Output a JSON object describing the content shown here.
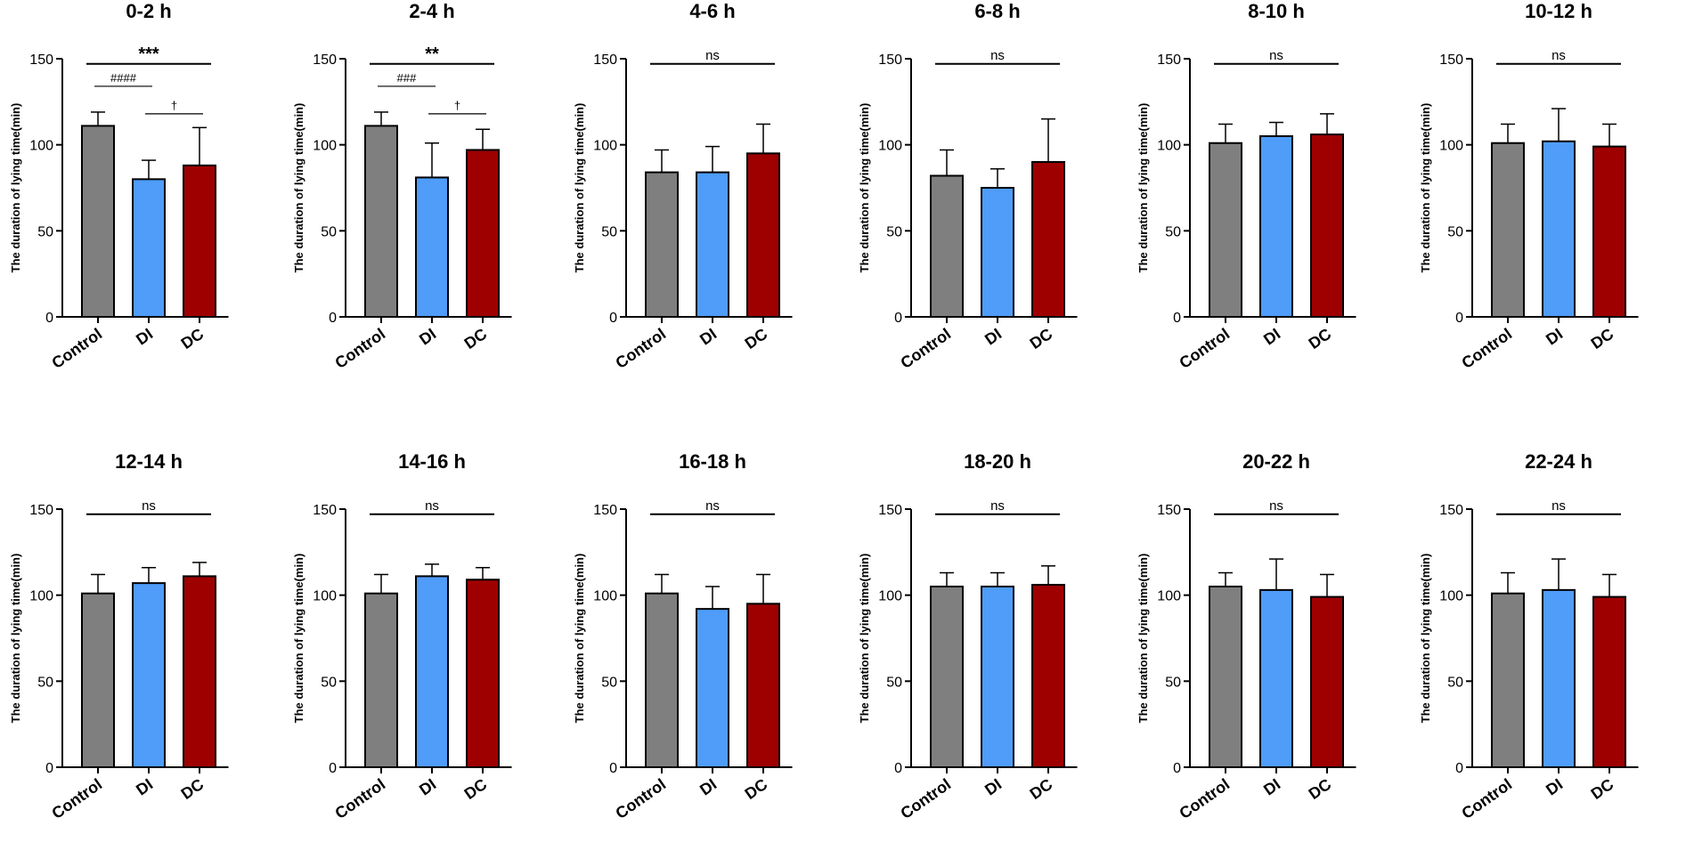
{
  "figure": {
    "ylabel": "The duration of lying time(min)",
    "categories": [
      "Control",
      "DI",
      "DC"
    ],
    "yticks": [
      "0",
      "50",
      "100",
      "150"
    ]
  },
  "colors": {
    "Control": "#7f7f7f",
    "DI": "#4f9cf9",
    "DC": "#9e0000",
    "axis": "#000000"
  },
  "chart_data": [
    {
      "type": "bar",
      "title": "0-2 h",
      "categories": [
        "Control",
        "DI",
        "DC"
      ],
      "values": [
        111,
        80,
        88
      ],
      "errors": [
        8,
        11,
        22
      ],
      "ylabel": "The duration of lying time(min)",
      "ylim": [
        0,
        150
      ],
      "annotations": [
        {
          "text": "***",
          "from": "Control",
          "to": "DC",
          "level": 1
        },
        {
          "text": "####",
          "from": "Control",
          "to": "DI",
          "level": 2
        },
        {
          "text": "†",
          "from": "DI",
          "to": "DC",
          "level": 3
        }
      ]
    },
    {
      "type": "bar",
      "title": "2-4 h",
      "categories": [
        "Control",
        "DI",
        "DC"
      ],
      "values": [
        111,
        81,
        97
      ],
      "errors": [
        8,
        20,
        12
      ],
      "ylabel": "The duration of lying time(min)",
      "ylim": [
        0,
        150
      ],
      "annotations": [
        {
          "text": "**",
          "from": "Control",
          "to": "DC",
          "level": 1
        },
        {
          "text": "###",
          "from": "Control",
          "to": "DI",
          "level": 2
        },
        {
          "text": "†",
          "from": "DI",
          "to": "DC",
          "level": 3
        }
      ]
    },
    {
      "type": "bar",
      "title": "4-6 h",
      "categories": [
        "Control",
        "DI",
        "DC"
      ],
      "values": [
        84,
        84,
        95
      ],
      "errors": [
        13,
        15,
        17
      ],
      "ylabel": "The duration of lying time(min)",
      "ylim": [
        0,
        150
      ],
      "annotations": [
        {
          "text": "ns",
          "from": "Control",
          "to": "DC",
          "level": 1
        }
      ]
    },
    {
      "type": "bar",
      "title": "6-8 h",
      "categories": [
        "Control",
        "DI",
        "DC"
      ],
      "values": [
        82,
        75,
        90
      ],
      "errors": [
        15,
        11,
        25
      ],
      "ylabel": "The duration of lying time(min)",
      "ylim": [
        0,
        150
      ],
      "annotations": [
        {
          "text": "ns",
          "from": "Control",
          "to": "DC",
          "level": 1
        }
      ]
    },
    {
      "type": "bar",
      "title": "8-10 h",
      "categories": [
        "Control",
        "DI",
        "DC"
      ],
      "values": [
        101,
        105,
        106
      ],
      "errors": [
        11,
        8,
        12
      ],
      "ylabel": "The duration of lying time(min)",
      "ylim": [
        0,
        150
      ],
      "annotations": [
        {
          "text": "ns",
          "from": "Control",
          "to": "DC",
          "level": 1
        }
      ]
    },
    {
      "type": "bar",
      "title": "10-12 h",
      "categories": [
        "Control",
        "DI",
        "DC"
      ],
      "values": [
        101,
        102,
        99
      ],
      "errors": [
        11,
        19,
        13
      ],
      "ylabel": "The duration of lying time(min)",
      "ylim": [
        0,
        150
      ],
      "annotations": [
        {
          "text": "ns",
          "from": "Control",
          "to": "DC",
          "level": 1
        }
      ]
    },
    {
      "type": "bar",
      "title": "12-14 h",
      "categories": [
        "Control",
        "DI",
        "DC"
      ],
      "values": [
        101,
        107,
        111
      ],
      "errors": [
        11,
        9,
        8
      ],
      "ylabel": "The duration of lying time(min)",
      "ylim": [
        0,
        150
      ],
      "annotations": [
        {
          "text": "ns",
          "from": "Control",
          "to": "DC",
          "level": 1
        }
      ]
    },
    {
      "type": "bar",
      "title": "14-16 h",
      "categories": [
        "Control",
        "DI",
        "DC"
      ],
      "values": [
        101,
        111,
        109
      ],
      "errors": [
        11,
        7,
        7
      ],
      "ylabel": "The duration of lying time(min)",
      "ylim": [
        0,
        150
      ],
      "annotations": [
        {
          "text": "ns",
          "from": "Control",
          "to": "DC",
          "level": 1
        }
      ]
    },
    {
      "type": "bar",
      "title": "16-18 h",
      "categories": [
        "Control",
        "DI",
        "DC"
      ],
      "values": [
        101,
        92,
        95
      ],
      "errors": [
        11,
        13,
        17
      ],
      "ylabel": "The duration of lying time(min)",
      "ylim": [
        0,
        150
      ],
      "annotations": [
        {
          "text": "ns",
          "from": "Control",
          "to": "DC",
          "level": 1
        }
      ]
    },
    {
      "type": "bar",
      "title": "18-20 h",
      "categories": [
        "Control",
        "DI",
        "DC"
      ],
      "values": [
        105,
        105,
        106
      ],
      "errors": [
        8,
        8,
        11
      ],
      "ylabel": "The duration of lying time(min)",
      "ylim": [
        0,
        150
      ],
      "annotations": [
        {
          "text": "ns",
          "from": "Control",
          "to": "DC",
          "level": 1
        }
      ]
    },
    {
      "type": "bar",
      "title": "20-22 h",
      "categories": [
        "Control",
        "DI",
        "DC"
      ],
      "values": [
        105,
        103,
        99
      ],
      "errors": [
        8,
        18,
        13
      ],
      "ylabel": "The duration of lying time(min)",
      "ylim": [
        0,
        150
      ],
      "annotations": [
        {
          "text": "ns",
          "from": "Control",
          "to": "DC",
          "level": 1
        }
      ]
    },
    {
      "type": "bar",
      "title": "22-24 h",
      "categories": [
        "Control",
        "DI",
        "DC"
      ],
      "values": [
        101,
        103,
        99
      ],
      "errors": [
        12,
        18,
        13
      ],
      "ylabel": "The duration of lying time(min)",
      "ylim": [
        0,
        150
      ],
      "annotations": [
        {
          "text": "ns",
          "from": "Control",
          "to": "DC",
          "level": 1
        }
      ]
    }
  ]
}
